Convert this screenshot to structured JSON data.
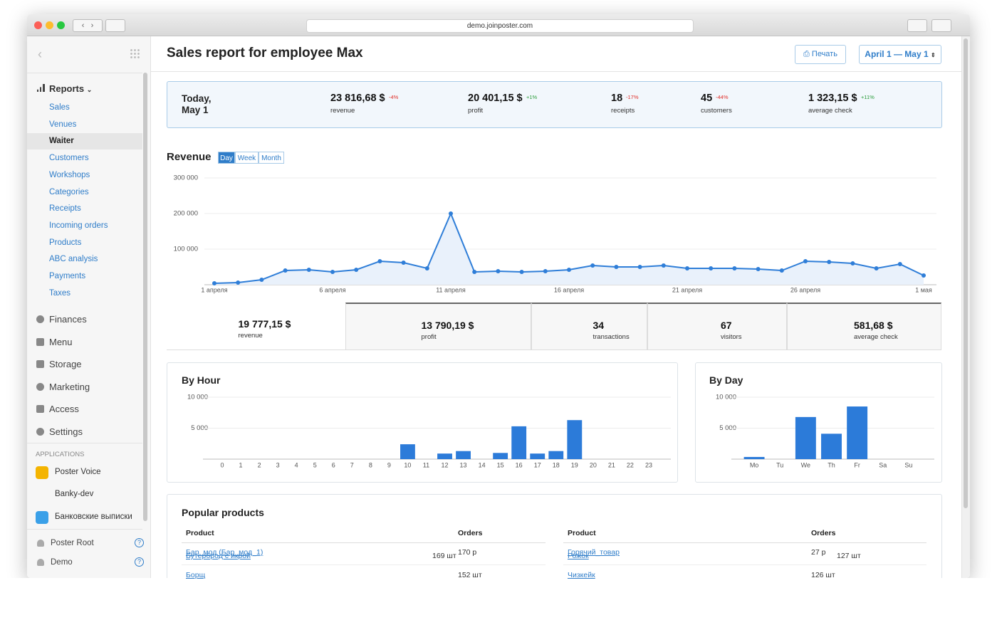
{
  "browser": {
    "url": "demo.joinposter.com"
  },
  "sidebar": {
    "reports": "Reports",
    "report_items": [
      "Sales",
      "Venues",
      "Waiter",
      "Customers",
      "Workshops",
      "Categories",
      "Receipts",
      "Incoming orders",
      "Products",
      "ABC analysis",
      "Payments",
      "Taxes"
    ],
    "sections": [
      "Finances",
      "Menu",
      "Storage",
      "Marketing",
      "Access",
      "Settings"
    ],
    "applications_label": "APPLICATIONS",
    "apps": [
      "Poster Voice",
      "Banky-dev",
      "Банковские выписки"
    ],
    "users": [
      "Poster Root",
      "Demo"
    ],
    "help": "?"
  },
  "header": {
    "title": "Sales report for employee Max",
    "print": "Печать",
    "date_range": "April 1 — May 1"
  },
  "today": {
    "label_lines": [
      "Today,",
      "May 1"
    ],
    "stats": [
      {
        "value": "23 816,68 $",
        "change": "-4%",
        "change_color": "#e0302a",
        "label": "revenue"
      },
      {
        "value": "20 401,15 $",
        "change": "+1%",
        "change_color": "#2a9d3a",
        "label": "profit"
      },
      {
        "value": "18",
        "change": "-17%",
        "change_color": "#e0302a",
        "label": "receipts"
      },
      {
        "value": "45",
        "change": "-44%",
        "change_color": "#e0302a",
        "label": "customers"
      },
      {
        "value": "1 323,15 $",
        "change": "+11%",
        "change_color": "#2a9d3a",
        "label": "average check"
      }
    ]
  },
  "revenue": {
    "title": "Revenue",
    "tabs": [
      "Day",
      "Week",
      "Month"
    ],
    "chart": {
      "type": "line",
      "color": "#2f7ed8",
      "categories": [
        "1 апреля",
        null,
        null,
        null,
        null,
        "6 апреля",
        null,
        null,
        null,
        null,
        "11 апреля",
        null,
        null,
        null,
        null,
        "16 апреля",
        null,
        null,
        null,
        null,
        "21 апреля",
        null,
        null,
        null,
        null,
        "26 апреля",
        null,
        null,
        null,
        null,
        "1 мая"
      ],
      "values": [
        4000,
        6000,
        14000,
        40000,
        42000,
        36000,
        42000,
        66000,
        62000,
        46000,
        200000,
        36000,
        38000,
        36000,
        38000,
        42000,
        54000,
        50000,
        50000,
        54000,
        46000,
        46000,
        46000,
        44000,
        40000,
        66000,
        64000,
        60000,
        46000,
        58000,
        26000
      ],
      "ylim": [
        0,
        300000
      ],
      "yticks": [
        {
          "value": 100000,
          "label": "100 000"
        },
        {
          "value": 200000,
          "label": "200 000"
        },
        {
          "value": 300000,
          "label": "300 000"
        }
      ],
      "grid": true
    }
  },
  "summary": [
    {
      "value": "19 777,15 $",
      "label": "revenue"
    },
    {
      "value": "13 790,19 $",
      "label": "profit"
    },
    {
      "value": "34",
      "label": "transactions"
    },
    {
      "value": "67",
      "label": "visitors"
    },
    {
      "value": "581,68 $",
      "label": "average check"
    }
  ],
  "by_hour": {
    "title": "By Hour",
    "chart": {
      "type": "bar",
      "color": "#2c7bd9",
      "categories": [
        "0",
        "1",
        "2",
        "3",
        "4",
        "5",
        "6",
        "7",
        "8",
        "9",
        "10",
        "11",
        "12",
        "13",
        "14",
        "15",
        "16",
        "17",
        "18",
        "19",
        "20",
        "21",
        "22",
        "23"
      ],
      "values": [
        0,
        0,
        0,
        0,
        0,
        0,
        0,
        0,
        0,
        0,
        2400,
        0,
        900,
        1300,
        0,
        1000,
        5300,
        900,
        1300,
        6300,
        0,
        0,
        0,
        0
      ],
      "ylim": [
        0,
        10000
      ],
      "yticks": [
        {
          "value": 5000,
          "label": "5 000"
        },
        {
          "value": 10000,
          "label": "10 000"
        }
      ],
      "grid": true
    }
  },
  "by_day": {
    "title": "By Day",
    "chart": {
      "type": "bar",
      "color": "#2c7bd9",
      "categories": [
        "Mo",
        "Tu",
        "We",
        "Th",
        "Fr",
        "Sa",
        "Su"
      ],
      "values": [
        350,
        0,
        6800,
        4100,
        8500,
        0,
        0
      ],
      "ylim": [
        0,
        10000
      ],
      "yticks": [
        {
          "value": 5000,
          "label": "5 000"
        },
        {
          "value": 10000,
          "label": "10 000"
        }
      ],
      "grid": true
    }
  },
  "popular": {
    "title": "Popular products",
    "tables": [
      {
        "headers": [
          "Product",
          "Orders"
        ],
        "rows": [
          [
            "Бар_мод (Бар_мод_1)",
            "170 р"
          ],
          [
            "Бутерброд с икрой",
            "169 шт"
          ],
          [
            "Борщ",
            "152 шт"
          ]
        ]
      },
      {
        "headers": [
          "Product",
          "Orders"
        ],
        "rows": [
          [
            "Горячий_товар",
            "27 р"
          ],
          [
            "Рожок",
            "127 шт"
          ],
          [
            "Чизкейк",
            "126 шт"
          ]
        ]
      }
    ]
  }
}
